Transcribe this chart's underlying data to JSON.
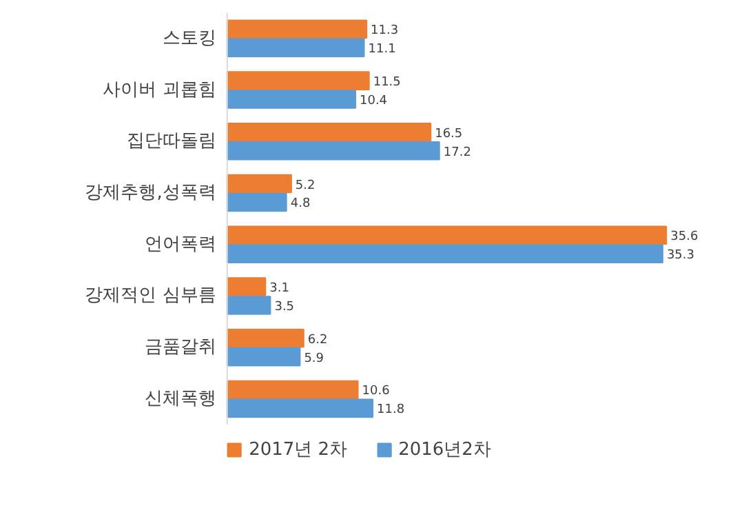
{
  "chart_data": {
    "type": "bar",
    "orientation": "horizontal",
    "data_labels": true,
    "legend": "bottom",
    "grid": false,
    "categories": [
      "스토킹",
      "사이버 괴롭힘",
      "집단따돌림",
      "강제추행,성폭력",
      "언어폭력",
      "강제적인 심부름",
      "금품갈취",
      "신체폭행"
    ],
    "series": [
      {
        "name": "2017년 2차",
        "color": "#ed7d31",
        "values": [
          11.3,
          11.5,
          16.5,
          5.2,
          35.6,
          3.1,
          6.2,
          10.6
        ]
      },
      {
        "name": "2016년2차",
        "color": "#5b9bd5",
        "values": [
          11.1,
          10.4,
          17.2,
          4.8,
          35.3,
          3.5,
          5.9,
          11.8
        ]
      }
    ]
  }
}
